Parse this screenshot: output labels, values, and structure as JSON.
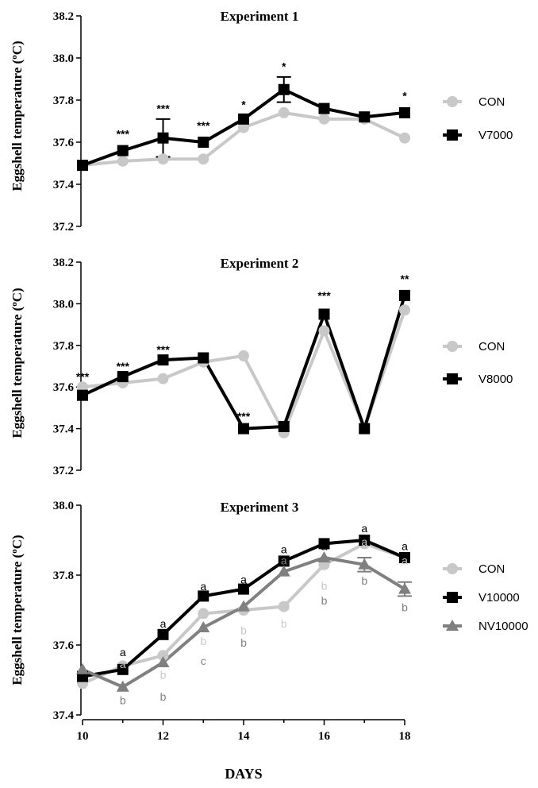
{
  "colors": {
    "CON": "#c8c8c8",
    "V": "#000000",
    "NV": "#808080"
  },
  "xlabel": "DAYS",
  "ylabel_main": "Eggshell temperature (",
  "ylabel_sup": "o",
  "ylabel_end": "C)",
  "chart_data": [
    {
      "type": "line",
      "title": "Experiment 1",
      "ylim": [
        37.2,
        38.2
      ],
      "yticks": [
        "37.2",
        "37.4",
        "37.6",
        "37.8",
        "38.0",
        "38.2"
      ],
      "x": [
        10,
        11,
        12,
        13,
        14,
        15,
        16,
        17,
        18
      ],
      "series": [
        {
          "name": "CON",
          "key": "CON",
          "marker": "circle",
          "values": [
            37.49,
            37.51,
            37.52,
            37.52,
            37.67,
            37.74,
            37.71,
            37.71,
            37.62
          ]
        },
        {
          "name": "V7000",
          "key": "V",
          "marker": "square",
          "values": [
            37.49,
            37.56,
            37.62,
            37.6,
            37.71,
            37.85,
            37.76,
            37.72,
            37.74
          ]
        }
      ],
      "errors": [
        {
          "series": 1,
          "x": 12,
          "err": 0.09
        },
        {
          "series": 1,
          "x": 15,
          "err": 0.06
        }
      ],
      "annotations": [
        {
          "x": 11,
          "y": 37.64,
          "text": "***",
          "key": "star"
        },
        {
          "x": 12,
          "y": 37.76,
          "text": "***",
          "key": "star"
        },
        {
          "x": 13,
          "y": 37.68,
          "text": "***",
          "key": "star"
        },
        {
          "x": 14,
          "y": 37.78,
          "text": "*",
          "key": "star"
        },
        {
          "x": 15,
          "y": 37.96,
          "text": "*",
          "key": "star"
        },
        {
          "x": 18,
          "y": 37.82,
          "text": "*",
          "key": "star"
        }
      ]
    },
    {
      "type": "line",
      "title": "Experiment 2",
      "ylim": [
        37.2,
        38.2
      ],
      "yticks": [
        "37.2",
        "37.4",
        "37.6",
        "37.8",
        "38.0",
        "38.2"
      ],
      "x": [
        10,
        11,
        12,
        13,
        14,
        15,
        16,
        17,
        18
      ],
      "series": [
        {
          "name": "CON",
          "key": "CON",
          "marker": "circle",
          "values": [
            37.6,
            37.62,
            37.64,
            37.72,
            37.75,
            37.38,
            37.87,
            37.4,
            37.97
          ]
        },
        {
          "name": "V8000",
          "key": "V",
          "marker": "square",
          "values": [
            37.56,
            37.65,
            37.73,
            37.74,
            37.4,
            37.41,
            37.95,
            37.4,
            38.04
          ]
        }
      ],
      "errors": [],
      "annotations": [
        {
          "x": 10,
          "y": 37.65,
          "text": "***",
          "key": "star"
        },
        {
          "x": 11,
          "y": 37.7,
          "text": "***",
          "key": "star"
        },
        {
          "x": 12,
          "y": 37.78,
          "text": "***",
          "key": "star"
        },
        {
          "x": 14,
          "y": 37.46,
          "text": "***",
          "key": "star"
        },
        {
          "x": 16,
          "y": 38.04,
          "text": "***",
          "key": "star"
        },
        {
          "x": 18,
          "y": 38.12,
          "text": "**",
          "key": "star"
        }
      ]
    },
    {
      "type": "line",
      "title": "Experiment 3",
      "ylim": [
        37.4,
        38.0
      ],
      "yticks": [
        "37.4",
        "37.6",
        "37.8",
        "38.0"
      ],
      "x": [
        10,
        11,
        12,
        13,
        14,
        15,
        16,
        17,
        18
      ],
      "xticks": [
        "10",
        "12",
        "14",
        "16",
        "18"
      ],
      "series": [
        {
          "name": "CON",
          "key": "CON",
          "marker": "circle",
          "values": [
            37.49,
            37.54,
            37.57,
            37.69,
            37.7,
            37.71,
            37.83,
            37.89,
            37.85
          ]
        },
        {
          "name": "V10000",
          "key": "V",
          "marker": "square",
          "values": [
            37.51,
            37.53,
            37.63,
            37.74,
            37.76,
            37.84,
            37.89,
            37.9,
            37.85
          ]
        },
        {
          "name": "NV10000",
          "key": "NV",
          "marker": "triangle",
          "values": [
            37.53,
            37.48,
            37.55,
            37.65,
            37.71,
            37.81,
            37.85,
            37.83,
            37.76
          ]
        }
      ],
      "errors": [
        {
          "series": 2,
          "x": 17,
          "err": 0.02
        },
        {
          "series": 2,
          "x": 18,
          "err": 0.02
        }
      ],
      "annotations": [
        {
          "x": 11,
          "y": 37.579,
          "text": "a",
          "key": "V"
        },
        {
          "x": 11,
          "y": 37.545,
          "text": "a",
          "key": "CON"
        },
        {
          "x": 11,
          "y": 37.442,
          "text": "b",
          "key": "NV"
        },
        {
          "x": 12,
          "y": 37.661,
          "text": "a",
          "key": "V"
        },
        {
          "x": 12,
          "y": 37.515,
          "text": "b",
          "key": "CON"
        },
        {
          "x": 12,
          "y": 37.452,
          "text": "b",
          "key": "NV"
        },
        {
          "x": 13,
          "y": 37.768,
          "text": "a",
          "key": "V"
        },
        {
          "x": 13,
          "y": 37.611,
          "text": "b",
          "key": "CON"
        },
        {
          "x": 13,
          "y": 37.555,
          "text": "c",
          "key": "NV"
        },
        {
          "x": 14,
          "y": 37.788,
          "text": "a",
          "key": "V"
        },
        {
          "x": 14,
          "y": 37.642,
          "text": "b",
          "key": "CON"
        },
        {
          "x": 14,
          "y": 37.607,
          "text": "b",
          "key": "NV"
        },
        {
          "x": 15,
          "y": 37.874,
          "text": "a",
          "key": "V"
        },
        {
          "x": 15,
          "y": 37.842,
          "text": "a",
          "key": "NV"
        },
        {
          "x": 15,
          "y": 37.661,
          "text": "b",
          "key": "CON"
        },
        {
          "x": 16,
          "y": 37.883,
          "text": "a",
          "key": "V"
        },
        {
          "x": 16,
          "y": 37.769,
          "text": "b",
          "key": "CON"
        },
        {
          "x": 16,
          "y": 37.727,
          "text": "b",
          "key": "NV"
        },
        {
          "x": 17,
          "y": 37.934,
          "text": "a",
          "key": "V"
        },
        {
          "x": 17,
          "y": 37.896,
          "text": "a",
          "key": "CON"
        },
        {
          "x": 17,
          "y": 37.784,
          "text": "b",
          "key": "NV"
        },
        {
          "x": 18,
          "y": 37.883,
          "text": "a",
          "key": "V"
        },
        {
          "x": 18,
          "y": 37.842,
          "text": "a",
          "key": "CON"
        },
        {
          "x": 18,
          "y": 37.708,
          "text": "b",
          "key": "NV"
        }
      ]
    }
  ]
}
